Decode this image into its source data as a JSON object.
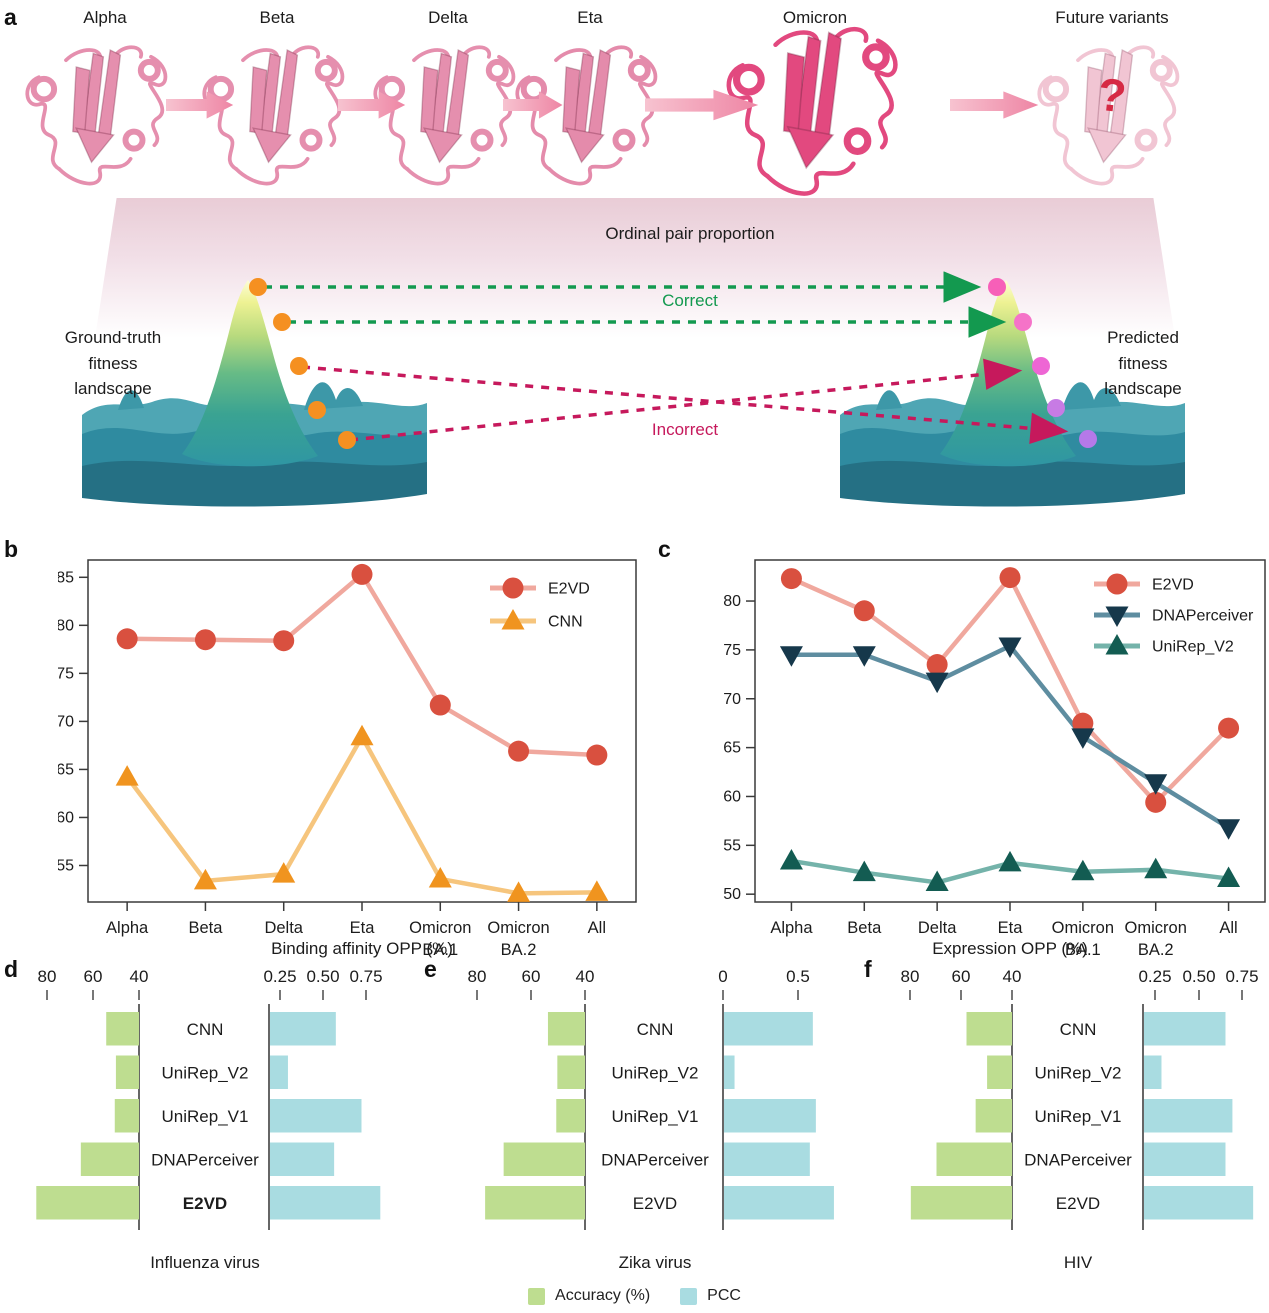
{
  "panel_a": {
    "label": "a",
    "variants": [
      "Alpha",
      "Beta",
      "Delta",
      "Eta",
      "Omicron",
      "Future variants"
    ],
    "future_question": "?",
    "plane_title": "Ordinal pair proportion",
    "correct_label": "Correct",
    "incorrect_label": "Incorrect",
    "left_label_lines": [
      "Ground-truth",
      "fitness",
      "landscape"
    ],
    "right_label_lines": [
      "Predicted",
      "fitness",
      "landscape"
    ],
    "colors": {
      "correct_green": "#13994f",
      "incorrect_crimson": "#c6195c",
      "ground_truth_dots": "#f59021",
      "predicted_dots": [
        "#f75fb8",
        "#f573c8",
        "#ee66d4",
        "#c77be4",
        "#b579e9"
      ],
      "protein_pink": "#e58fae",
      "omicron_pink": "#e2497f",
      "future_pink": "#eeb7c9",
      "arrow_pink": "#ef8fab",
      "question_red": "#d62a44"
    }
  },
  "chart_data": [
    {
      "id": "b",
      "panel_letter": "b",
      "type": "line",
      "xlabel": "Binding affinity OPP (%)",
      "categories": [
        "Alpha",
        "Beta",
        "Delta",
        "Eta",
        "Omicron BA.1",
        "Omicron BA.2",
        "All"
      ],
      "yticks": [
        55,
        60,
        65,
        70,
        75,
        80,
        85
      ],
      "ylim": [
        51.2,
        86.8
      ],
      "legend_position": "top-right",
      "grid": false,
      "series": [
        {
          "name": "E2VD",
          "marker": "circle",
          "color": "#d9503f",
          "line_color": "#f0a89e",
          "values": [
            78.6,
            78.5,
            78.4,
            85.3,
            71.7,
            66.9,
            66.5
          ]
        },
        {
          "name": "CNN",
          "marker": "triangle-up",
          "color": "#f0941f",
          "line_color": "#f6c57d",
          "values": [
            64.2,
            53.4,
            54.1,
            68.4,
            53.6,
            52.1,
            52.2
          ]
        }
      ]
    },
    {
      "id": "c",
      "panel_letter": "c",
      "type": "line",
      "xlabel": "Expression OPP (%)",
      "categories": [
        "Alpha",
        "Beta",
        "Delta",
        "Eta",
        "Omicron BA.1",
        "Omicron BA.2",
        "All"
      ],
      "yticks": [
        50,
        55,
        60,
        65,
        70,
        75,
        80
      ],
      "ylim": [
        49.2,
        84.2
      ],
      "legend_position": "top-right",
      "grid": false,
      "series": [
        {
          "name": "E2VD",
          "marker": "circle",
          "color": "#d9503f",
          "line_color": "#f0a89e",
          "values": [
            82.3,
            79.0,
            73.5,
            82.4,
            67.5,
            59.4,
            67.0
          ]
        },
        {
          "name": "DNAPerceiver",
          "marker": "triangle-down",
          "color": "#16384b",
          "line_color": "#5e8da0",
          "values": [
            74.5,
            74.5,
            71.8,
            75.4,
            66.1,
            61.4,
            56.8
          ]
        },
        {
          "name": "UniRep_V2",
          "marker": "triangle-up",
          "color": "#135c52",
          "line_color": "#74b3aa",
          "values": [
            53.4,
            52.2,
            51.2,
            53.2,
            52.3,
            52.5,
            51.6
          ]
        }
      ]
    },
    {
      "id": "d",
      "panel_letter": "d",
      "type": "bar-pair",
      "title": "Influenza virus",
      "methods": [
        "CNN",
        "UniRep_V2",
        "UniRep_V1",
        "DNAPerceiver",
        "E2VD"
      ],
      "emphasized_method": "E2VD",
      "left": {
        "label": "Accuracy (%)",
        "tick_labels": [
          "80",
          "60",
          "40"
        ],
        "ticks": [
          80,
          60,
          40
        ],
        "axis_base": 40,
        "color": "#bedd90",
        "values": [
          54.2,
          50.0,
          50.5,
          65.2,
          84.5
        ]
      },
      "right": {
        "label": "PCC",
        "tick_labels": [
          "0.25",
          "0.50",
          "0.75"
        ],
        "ticks": [
          0.25,
          0.5,
          0.75
        ],
        "axis_base": 0.185,
        "color": "#a9dce1",
        "values": [
          0.57,
          0.29,
          0.72,
          0.56,
          0.83
        ]
      }
    },
    {
      "id": "e",
      "panel_letter": "e",
      "type": "bar-pair",
      "title": "Zika virus",
      "methods": [
        "CNN",
        "UniRep_V2",
        "UniRep_V1",
        "DNAPerceiver",
        "E2VD"
      ],
      "emphasized_method": null,
      "left": {
        "label": "Accuracy (%)",
        "tick_labels": [
          "80",
          "60",
          "40"
        ],
        "ticks": [
          80,
          60,
          40
        ],
        "axis_base": 40,
        "color": "#bedd90",
        "values": [
          53.8,
          50.3,
          50.7,
          70.3,
          77.2
        ]
      },
      "right": {
        "label": "PCC",
        "tick_labels": [
          "0",
          "0.5"
        ],
        "ticks": [
          0,
          0.5
        ],
        "axis_base": 0,
        "color": "#a9dce1",
        "values": [
          0.59,
          0.07,
          0.61,
          0.57,
          0.73
        ]
      }
    },
    {
      "id": "f",
      "panel_letter": "f",
      "type": "bar-pair",
      "title": "HIV",
      "methods": [
        "CNN",
        "UniRep_V2",
        "UniRep_V1",
        "DNAPerceiver",
        "E2VD"
      ],
      "emphasized_method": null,
      "left": {
        "label": "Accuracy (%)",
        "tick_labels": [
          "80",
          "60",
          "40"
        ],
        "ticks": [
          80,
          60,
          40
        ],
        "axis_base": 40,
        "color": "#bedd90",
        "values": [
          57.9,
          49.8,
          54.3,
          69.7,
          79.8
        ]
      },
      "right": {
        "label": "PCC",
        "tick_labels": [
          "0.25",
          "0.50",
          "0.75"
        ],
        "ticks": [
          0.25,
          0.5,
          0.75
        ],
        "axis_base": 0.179,
        "color": "#a9dce1",
        "values": [
          0.65,
          0.28,
          0.69,
          0.65,
          0.81
        ]
      }
    }
  ],
  "bottom_legend": {
    "accuracy_label": "Accuracy (%)",
    "accuracy_color": "#bedd90",
    "pcc_label": "PCC",
    "pcc_color": "#a9dce1"
  }
}
